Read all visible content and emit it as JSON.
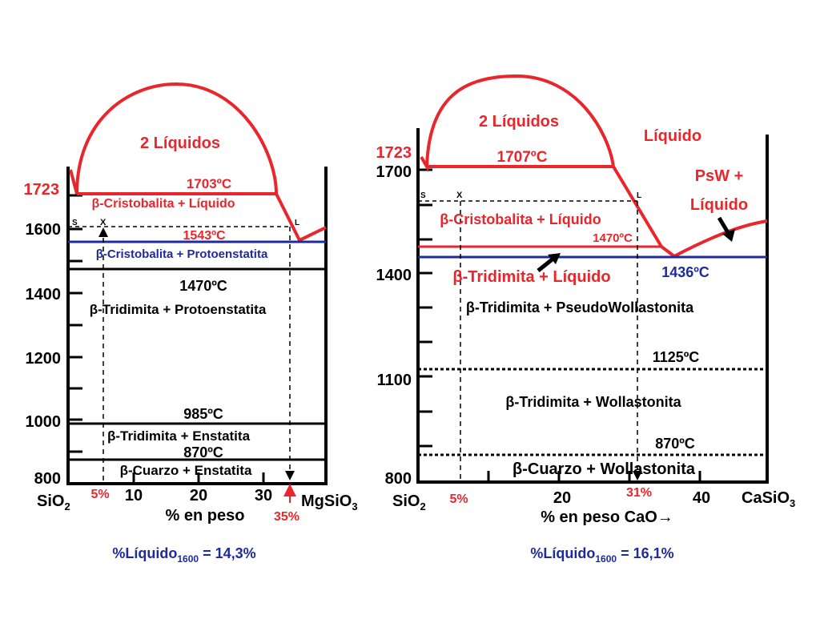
{
  "colors": {
    "red": "#e8262b",
    "blue": "#1f2a9e",
    "black": "#000000"
  },
  "left": {
    "y_ticks": [
      "1723",
      "1600",
      "1400",
      "1200",
      "1000",
      "800"
    ],
    "x_ticks": [
      "10",
      "20",
      "30"
    ],
    "end_left": "SiO",
    "end_left_sub": "2",
    "end_right": "MgSiO",
    "end_right_sub": "3",
    "xlabel": "% en peso",
    "liquidus_label": "2 Líquidos",
    "temp_1703": "1703ºC",
    "temp_1543": "1543ºC",
    "temp_1470": "1470ºC",
    "temp_985": "985ºC",
    "temp_870": "870ºC",
    "region_cristo_liquido": "-Cristobalita + Líquido",
    "region_cristo_proto": "-Cristobalita + Protoenstatita",
    "region_tridi_proto": "-Tridimita + Protoenstatita",
    "region_tridi_enst": "-Tridimita + Enstatita",
    "region_cuarzo_enst": "-Cuarzo + Enstatita",
    "beta": "β",
    "tie_s": "S",
    "tie_x": "X",
    "tie_l": "L",
    "pct_5": "5%",
    "pct_35": "35%",
    "result_prefix": "%Líquido",
    "result_sub": "1600",
    "result_value": " = 14,3%"
  },
  "right": {
    "y_ticks": [
      "1723",
      "1700",
      "1400",
      "1100",
      "800"
    ],
    "x_ticks": [
      "20",
      "40"
    ],
    "end_left": "SiO",
    "end_left_sub": "2",
    "end_right": "CaSiO",
    "end_right_sub": "3",
    "xlabel": "% en peso CaO→",
    "liquidus_label": "2 Líquidos",
    "liquido": "Líquido",
    "psw_1": "PsW +",
    "psw_2": "Líquido",
    "temp_1707": "1707ºC",
    "temp_1470": "1470ºC",
    "temp_1436": "1436ºC",
    "temp_1125": "1125ºC",
    "temp_870": "870ºC",
    "region_cristo_liquido": "-Cristobalita + Líquido",
    "region_tridi_liquido": "-Tridimita + Líquido",
    "region_tridi_psw": "-Tridimita + PseudoWollastonita",
    "region_tridi_woll": "-Tridimita + Wollastonita",
    "region_cuarzo_woll": "-Cuarzo + Wollastonita",
    "beta": "β",
    "tie_s": "S",
    "tie_x": "X",
    "tie_l": "L",
    "pct_5": "5%",
    "pct_31": "31%",
    "result_prefix": "%Líquido",
    "result_sub": "1600",
    "result_value": " = 16,1%"
  }
}
